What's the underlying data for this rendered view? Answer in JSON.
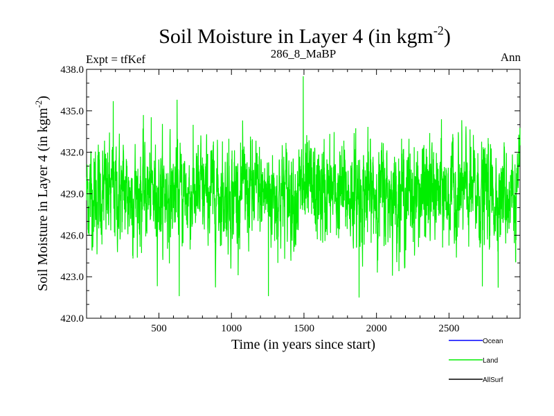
{
  "chart_data": {
    "type": "line",
    "title": "Soil Moisture in Layer 4 (in kgm",
    "title_sup": "-2",
    "title_close": ")",
    "subtitle_left": "Expt = tfKef",
    "subtitle_center": "286_8_MaBP",
    "subtitle_right": "Ann",
    "xlabel": "Time (in years since start)",
    "ylabel": "Soil Moisture in Layer 4 (in kgm",
    "ylabel_sup": "-2",
    "ylabel_close": ")",
    "xlim": [
      1,
      2990
    ],
    "ylim": [
      420.0,
      438.0
    ],
    "xticks": [
      500,
      1000,
      1500,
      2000,
      2500
    ],
    "xtick_labels": [
      "500",
      "1000",
      "1500",
      "2000",
      "2500"
    ],
    "yticks": [
      420.0,
      423.0,
      426.0,
      429.0,
      432.0,
      435.0,
      438.0
    ],
    "ytick_labels": [
      "420.0",
      "423.0",
      "426.0",
      "429.0",
      "432.0",
      "435.0",
      "438.0"
    ],
    "series": [
      {
        "name": "Ocean",
        "color": "#0000ff",
        "values": []
      },
      {
        "name": "Land",
        "color": "#00ee00",
        "mean": 429.0,
        "spread": 1.8,
        "n_points": 2990,
        "extremes": [
          {
            "x": 640,
            "y": 421.6
          },
          {
            "x": 1255,
            "y": 421.6
          },
          {
            "x": 1495,
            "y": 437.5
          },
          {
            "x": 1880,
            "y": 421.5
          },
          {
            "x": 2730,
            "y": 422.3
          },
          {
            "x": 185,
            "y": 435.7
          },
          {
            "x": 625,
            "y": 435.8
          }
        ]
      },
      {
        "name": "AllSurf",
        "color": "#000000",
        "values": []
      }
    ],
    "legend_placement": "bottom-right",
    "grid": false
  }
}
